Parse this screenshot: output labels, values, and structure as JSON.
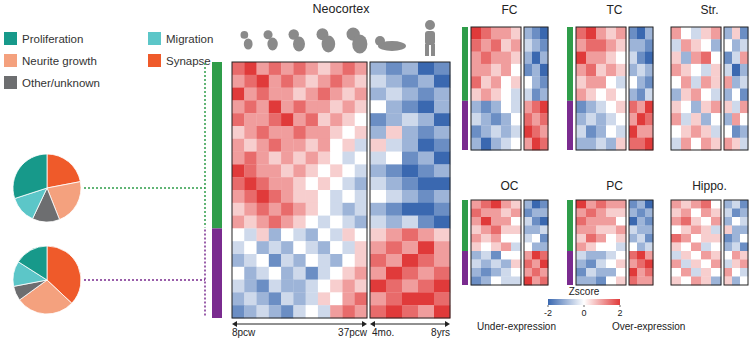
{
  "chart_data": [
    {
      "type": "pie",
      "categories": [
        "Synapse",
        "Neurite growth",
        "Other/unknown",
        "Migration",
        "Proliferation"
      ],
      "values": [
        22,
        22,
        13,
        13,
        30
      ],
      "colors": [
        "#ef5a2a",
        "#f4a17e",
        "#6d6e70",
        "#5cc6c8",
        "#17998a"
      ]
    },
    {
      "type": "pie",
      "categories": [
        "Synapse",
        "Neurite growth",
        "Other/unknown",
        "Migration",
        "Proliferation"
      ],
      "values": [
        37,
        28,
        7,
        12,
        16
      ],
      "colors": [
        "#ef5a2a",
        "#f4a17e",
        "#6d6e70",
        "#5cc6c8",
        "#17998a"
      ]
    },
    {
      "type": "heatmap",
      "title": "Neocortex",
      "x_labels": [
        "8pcw",
        "37pcw",
        "4mo.",
        "8yrs"
      ],
      "row_groups": [
        {
          "color": "#2f9d4a",
          "rows": 13
        },
        {
          "color": "#7a2b8f",
          "rows": 7
        }
      ],
      "cells": [
        [
          [
            1.5,
            2,
            1,
            1.5,
            1,
            1.5,
            1,
            0.5,
            1,
            1.5,
            1
          ],
          [
            1,
            1.5,
            2,
            1,
            1.5,
            1,
            0.5,
            1,
            1.5,
            1,
            0.5
          ],
          [
            2,
            1,
            1.5,
            1,
            1,
            0.5,
            1,
            1.5,
            1,
            0.5,
            1
          ],
          [
            1,
            1.5,
            1,
            2,
            1,
            1.5,
            1,
            1,
            0.5,
            1,
            0.5
          ],
          [
            1.5,
            1,
            1,
            1.5,
            2,
            1,
            1.5,
            0.5,
            1,
            0.5,
            0
          ],
          [
            0.5,
            1,
            1.5,
            1,
            1,
            1.5,
            1,
            1,
            0.5,
            0,
            0.5
          ],
          [
            1,
            0.5,
            1,
            1.5,
            1,
            1,
            0.5,
            1,
            0,
            0.5,
            -0.5
          ],
          [
            1,
            1.5,
            1,
            0.5,
            1,
            0.5,
            1,
            0.5,
            0,
            -0.5,
            0
          ],
          [
            2,
            1.5,
            1,
            1,
            0.5,
            1,
            0.5,
            0,
            0.5,
            0,
            -0.5
          ],
          [
            1.5,
            2,
            1.5,
            1,
            1,
            0.5,
            0,
            0.5,
            0,
            -0.5,
            -1
          ],
          [
            1,
            1.5,
            2,
            1.5,
            1,
            0.5,
            0.5,
            0,
            -0.5,
            0,
            -0.5
          ],
          [
            0.5,
            1,
            1.5,
            1,
            1.5,
            1,
            0.5,
            0,
            -0.5,
            -1,
            -0.5
          ],
          [
            1,
            0.5,
            1,
            1.5,
            1,
            0.5,
            0,
            -0.5,
            0,
            -0.5,
            -1
          ],
          [
            0,
            -0.5,
            0.5,
            -1,
            0,
            -0.5,
            -1,
            0,
            -0.5,
            0.5,
            0
          ],
          [
            -0.5,
            0,
            -1,
            -0.5,
            -1,
            0,
            -0.5,
            -1,
            0,
            -0.5,
            0.5
          ],
          [
            -1,
            -0.5,
            0,
            -1.5,
            -0.5,
            -1,
            0,
            -0.5,
            -1,
            0,
            0.5
          ],
          [
            0,
            -1,
            -0.5,
            0,
            -1,
            -0.5,
            -1.5,
            -0.5,
            0,
            0.5,
            1
          ],
          [
            -0.5,
            -1,
            -1.5,
            -0.5,
            -1,
            -1,
            -0.5,
            0,
            0.5,
            1,
            0.5
          ],
          [
            -1,
            -0.5,
            -1,
            -1.5,
            -0.5,
            -1,
            -0.5,
            0.5,
            0,
            1,
            1.5
          ],
          [
            -1.5,
            -1,
            -0.5,
            -1,
            -1.5,
            -0.5,
            0,
            -0.5,
            1,
            1.5,
            1
          ]
        ],
        [
          [
            -1,
            -1.5,
            -1,
            -2,
            -1.5
          ],
          [
            -0.5,
            -1,
            -1.5,
            -1,
            -2
          ],
          [
            -1,
            -0.5,
            -1,
            -1.5,
            -1
          ],
          [
            0,
            -1,
            -1.5,
            -2,
            -1
          ],
          [
            -1.5,
            -1,
            -0.5,
            -1,
            -2
          ],
          [
            -1,
            0.5,
            -1,
            -1.5,
            -1
          ],
          [
            0.5,
            -0.5,
            -1,
            -2,
            -1.5
          ],
          [
            -0.5,
            0,
            -1.5,
            -1,
            -2
          ],
          [
            -1,
            -1.5,
            -2,
            -1.5,
            -1
          ],
          [
            -0.5,
            -1,
            -1.5,
            -2,
            -2
          ],
          [
            0,
            -0.5,
            -1,
            -1.5,
            -1
          ],
          [
            -1,
            -1.5,
            -2,
            -2,
            -1.5
          ],
          [
            -0.5,
            -1,
            -0.5,
            -1.5,
            -2
          ],
          [
            0.5,
            1,
            1.5,
            1,
            0.5
          ],
          [
            1,
            1.5,
            1,
            2,
            1
          ],
          [
            1.5,
            1,
            2,
            1.5,
            1
          ],
          [
            1,
            2,
            1.5,
            1,
            1.5
          ],
          [
            2,
            1.5,
            1,
            1.5,
            2
          ],
          [
            1,
            1.5,
            2,
            2,
            1.5
          ],
          [
            1.5,
            2,
            1.5,
            1,
            2
          ]
        ]
      ]
    },
    {
      "type": "heatmap",
      "title": "FC",
      "row_groups": [
        {
          "color": "#2f9d4a",
          "rows": 6
        },
        {
          "color": "#7a2b8f",
          "rows": 4
        }
      ],
      "cells": [
        [
          [
            2,
            1.5,
            1,
            1,
            0.5
          ],
          [
            1.5,
            1,
            1.5,
            0.5,
            1
          ],
          [
            1,
            1.5,
            1,
            1,
            0.5
          ],
          [
            1,
            1,
            0.5,
            1,
            0
          ],
          [
            1.5,
            0.5,
            1,
            0,
            0.5
          ],
          [
            0.5,
            1,
            0.5,
            0,
            -0.5
          ],
          [
            -1,
            -1.5,
            -1,
            0,
            -0.5
          ],
          [
            -0.5,
            -1,
            -1.5,
            -1,
            0
          ],
          [
            -1.5,
            -1,
            -0.5,
            -1,
            -0.5
          ],
          [
            -1,
            -2,
            -1,
            -0.5,
            0
          ]
        ],
        [
          [
            -1,
            -1.5,
            -2
          ],
          [
            -0.5,
            -1,
            -1.5
          ],
          [
            -1,
            -2,
            -1
          ],
          [
            -1.5,
            -1,
            -2
          ],
          [
            0,
            -1,
            -1.5
          ],
          [
            -0.5,
            -1.5,
            -1
          ],
          [
            1,
            1.5,
            2
          ],
          [
            1.5,
            1,
            1.5
          ],
          [
            2,
            1.5,
            1
          ],
          [
            1,
            2,
            1.5
          ]
        ]
      ]
    },
    {
      "type": "heatmap",
      "title": "TC",
      "row_groups": [
        {
          "color": "#2f9d4a",
          "rows": 6
        },
        {
          "color": "#7a2b8f",
          "rows": 4
        }
      ],
      "cells": [
        [
          [
            1.5,
            2,
            1,
            0.5,
            1
          ],
          [
            1,
            1.5,
            1.5,
            1,
            0.5
          ],
          [
            2,
            1,
            1,
            0.5,
            0
          ],
          [
            1,
            1.5,
            0.5,
            1,
            0.5
          ],
          [
            0.5,
            1,
            1,
            0,
            -0.5
          ],
          [
            1,
            0.5,
            0,
            0.5,
            0
          ],
          [
            -1.5,
            -1,
            -0.5,
            0,
            0.5
          ],
          [
            -1,
            -0.5,
            -1,
            -0.5,
            0
          ],
          [
            -0.5,
            -1.5,
            -1,
            0,
            -0.5
          ],
          [
            -1,
            -1,
            -0.5,
            -1,
            0.5
          ]
        ],
        [
          [
            -1.5,
            -2,
            -1
          ],
          [
            -1,
            -1,
            -1.5
          ],
          [
            -0.5,
            -1.5,
            -2
          ],
          [
            -1,
            -0.5,
            -1
          ],
          [
            0,
            -1,
            -1.5
          ],
          [
            -1,
            -1.5,
            -0.5
          ],
          [
            1.5,
            1,
            2
          ],
          [
            1,
            2,
            1.5
          ],
          [
            2,
            1,
            1
          ],
          [
            1.5,
            1.5,
            2
          ]
        ]
      ]
    },
    {
      "type": "heatmap",
      "title": "Str.",
      "cells": [
        [
          [
            1,
            0,
            -0.5,
            0.5,
            1
          ],
          [
            -0.5,
            1,
            0.5,
            0,
            -1
          ],
          [
            0.5,
            -1,
            1,
            1.5,
            0
          ],
          [
            1,
            0.5,
            0,
            -0.5,
            0.5
          ],
          [
            0,
            1,
            -0.5,
            1,
            0.5
          ],
          [
            -1,
            0.5,
            1,
            0,
            -0.5
          ],
          [
            0.5,
            0,
            -1,
            0.5,
            1
          ],
          [
            1,
            -0.5,
            0.5,
            -1,
            0
          ],
          [
            0,
            0.5,
            1,
            0.5,
            -0.5
          ],
          [
            -0.5,
            1,
            0,
            1,
            0.5
          ]
        ],
        [
          [
            -1,
            0.5,
            -1.5
          ],
          [
            0,
            -1,
            -0.5
          ],
          [
            -1.5,
            -0.5,
            1
          ],
          [
            -0.5,
            -2,
            -1
          ],
          [
            1,
            -1,
            -0.5
          ],
          [
            -1,
            0,
            -1.5
          ],
          [
            0.5,
            -0.5,
            1
          ],
          [
            -1,
            1,
            0
          ],
          [
            0,
            -1.5,
            -1
          ],
          [
            1,
            0.5,
            -0.5
          ]
        ]
      ]
    },
    {
      "type": "heatmap",
      "title": "OC",
      "row_groups": [
        {
          "color": "#2f9d4a",
          "rows": 6
        },
        {
          "color": "#7a2b8f",
          "rows": 4
        }
      ],
      "cells": [
        [
          [
            1,
            1.5,
            2,
            1,
            0.5
          ],
          [
            1.5,
            1,
            1,
            0.5,
            1
          ],
          [
            1,
            2,
            1,
            1,
            0
          ],
          [
            0.5,
            1,
            1.5,
            0.5,
            0.5
          ],
          [
            1,
            0.5,
            1,
            0,
            0
          ],
          [
            0.5,
            0,
            0.5,
            1,
            -0.5
          ],
          [
            -1,
            -0.5,
            -1.5,
            0,
            0
          ],
          [
            -0.5,
            -1,
            -0.5,
            -1,
            0.5
          ],
          [
            -1,
            -1.5,
            -1,
            -0.5,
            0
          ],
          [
            -1.5,
            -1,
            0,
            -0.5,
            -0.5
          ]
        ],
        [
          [
            -1,
            -2,
            -1.5
          ],
          [
            -1.5,
            -1,
            -1
          ],
          [
            -0.5,
            -1.5,
            -2
          ],
          [
            -1,
            -1,
            -0.5
          ],
          [
            -0.5,
            0,
            -1.5
          ],
          [
            0,
            -1,
            -1
          ],
          [
            1,
            2,
            1.5
          ],
          [
            1.5,
            1,
            2
          ],
          [
            1,
            1.5,
            1
          ],
          [
            2,
            1,
            1.5
          ]
        ]
      ]
    },
    {
      "type": "heatmap",
      "title": "PC",
      "row_groups": [
        {
          "color": "#2f9d4a",
          "rows": 6
        },
        {
          "color": "#7a2b8f",
          "rows": 4
        }
      ],
      "cells": [
        [
          [
            2,
            1,
            1.5,
            1,
            1
          ],
          [
            1,
            1.5,
            1,
            0.5,
            0.5
          ],
          [
            1.5,
            1,
            1,
            1,
            0
          ],
          [
            1,
            1,
            0.5,
            0.5,
            1
          ],
          [
            0.5,
            1.5,
            1,
            0,
            0.5
          ],
          [
            1,
            0.5,
            0,
            0,
            -0.5
          ],
          [
            -0.5,
            -1,
            -1,
            -0.5,
            0
          ],
          [
            -1,
            -1.5,
            -0.5,
            0,
            0.5
          ],
          [
            -1.5,
            -0.5,
            -1,
            -1,
            0
          ],
          [
            -1,
            -1,
            -1.5,
            0,
            0.5
          ]
        ],
        [
          [
            -1.5,
            -1,
            -2
          ],
          [
            -1,
            -1.5,
            -1
          ],
          [
            -2,
            -1,
            -1.5
          ],
          [
            -0.5,
            -1,
            -1
          ],
          [
            -1,
            -0.5,
            -1.5
          ],
          [
            0,
            -1,
            -0.5
          ],
          [
            1.5,
            2,
            1
          ],
          [
            1,
            1.5,
            2
          ],
          [
            2,
            1,
            1.5
          ],
          [
            1.5,
            1,
            1
          ]
        ]
      ]
    },
    {
      "type": "heatmap",
      "title": "Hippo.",
      "cells": [
        [
          [
            1,
            0.5,
            1,
            1.5,
            0
          ],
          [
            0.5,
            1,
            0,
            1,
            0.5
          ],
          [
            1,
            1.5,
            0.5,
            0,
            1
          ],
          [
            0,
            0.5,
            1,
            0.5,
            -0.5
          ],
          [
            1.5,
            1,
            0,
            0.5,
            0.5
          ],
          [
            0.5,
            0,
            1,
            -0.5,
            0
          ],
          [
            -0.5,
            0.5,
            0,
            1,
            0.5
          ],
          [
            1,
            -0.5,
            0.5,
            0,
            1
          ],
          [
            0,
            1,
            -0.5,
            0.5,
            0
          ],
          [
            0.5,
            0,
            1,
            0.5,
            -1
          ]
        ],
        [
          [
            -1,
            -0.5,
            -1.5
          ],
          [
            -0.5,
            -1.5,
            -1
          ],
          [
            -1,
            0,
            -0.5
          ],
          [
            0.5,
            -1,
            -1
          ],
          [
            -1.5,
            -1,
            0
          ],
          [
            -1,
            -0.5,
            -1.5
          ],
          [
            0,
            1,
            0.5
          ],
          [
            -0.5,
            0.5,
            1
          ],
          [
            1,
            0,
            -0.5
          ],
          [
            0.5,
            -1,
            0
          ]
        ]
      ]
    },
    {
      "type": "colorbar",
      "title": "Zscore",
      "range": [
        -2,
        2
      ],
      "ticks": [
        -2,
        0,
        2
      ],
      "low_label": "Under-expression",
      "high_label": "Over-expression",
      "colors": [
        "#3a68b0",
        "#ffffff",
        "#e03a3a"
      ]
    }
  ]
}
